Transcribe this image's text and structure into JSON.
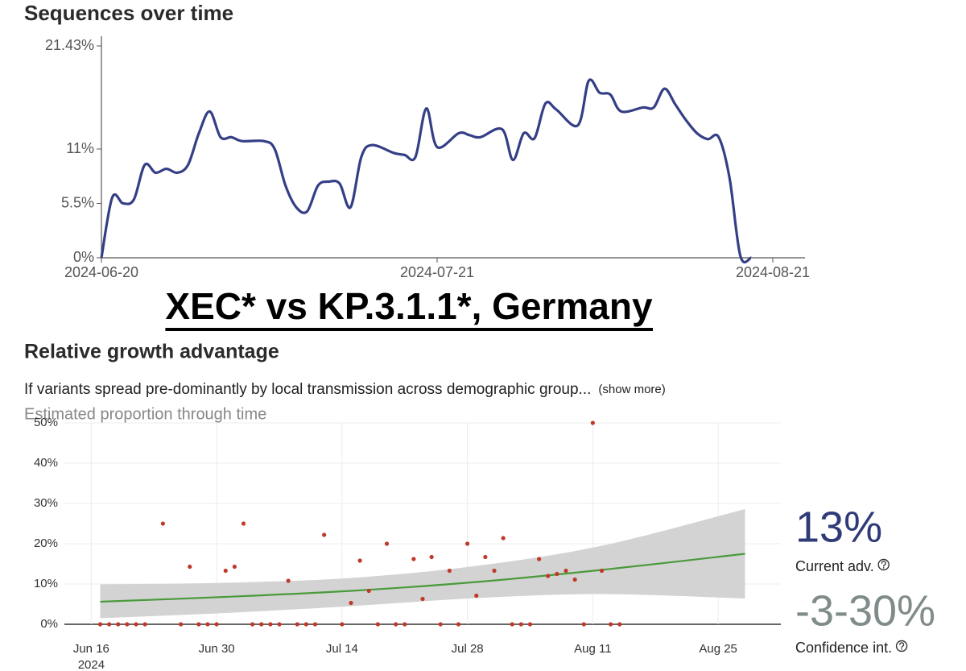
{
  "heading": "XEC* vs KP.3.1.1*, Germany",
  "section_title": "Relative growth advantage",
  "description": "If variants spread pre-dominantly by local transmission across demographic group...",
  "show_more": "(show more)",
  "stats": [
    {
      "value": "13%",
      "label": "Current adv."
    },
    {
      "value": "-3-30%",
      "label": "Confidence int."
    }
  ],
  "chart_data": [
    {
      "type": "line",
      "title": "Sequences over time",
      "color": "#353f85",
      "x": [
        "2024-06-20",
        "2024-06-21",
        "2024-06-22",
        "2024-06-23",
        "2024-06-24",
        "2024-06-25",
        "2024-06-26",
        "2024-06-27",
        "2024-06-28",
        "2024-06-29",
        "2024-06-30",
        "2024-07-01",
        "2024-07-02",
        "2024-07-03",
        "2024-07-05",
        "2024-07-06",
        "2024-07-07",
        "2024-07-08",
        "2024-07-09",
        "2024-07-10",
        "2024-07-11",
        "2024-07-12",
        "2024-07-13",
        "2024-07-14",
        "2024-07-15",
        "2024-07-17",
        "2024-07-18",
        "2024-07-19",
        "2024-07-20",
        "2024-07-21",
        "2024-07-23",
        "2024-07-24",
        "2024-07-25",
        "2024-07-27",
        "2024-07-28",
        "2024-07-29",
        "2024-07-30",
        "2024-07-31",
        "2024-08-01",
        "2024-08-03",
        "2024-08-04",
        "2024-08-05",
        "2024-08-06",
        "2024-08-07",
        "2024-08-09",
        "2024-08-10",
        "2024-08-11",
        "2024-08-12",
        "2024-08-13",
        "2024-08-14",
        "2024-08-15",
        "2024-08-16",
        "2024-08-17",
        "2024-08-18",
        "2024-08-19"
      ],
      "values": [
        0,
        6.1,
        5.5,
        5.9,
        9.4,
        8.6,
        9.0,
        8.6,
        9.4,
        12.6,
        14.8,
        12.2,
        12.2,
        11.8,
        11.8,
        11.0,
        7.3,
        5.1,
        4.7,
        7.3,
        7.7,
        7.5,
        5.1,
        10.2,
        11.4,
        10.6,
        10.4,
        10.2,
        15.1,
        11.2,
        12.6,
        12.4,
        12.2,
        13.0,
        9.9,
        12.6,
        12.1,
        15.6,
        15.0,
        13.4,
        17.9,
        16.7,
        16.5,
        14.8,
        15.2,
        15.2,
        17.1,
        15.5,
        13.9,
        12.6,
        12.0,
        12.2,
        8.1,
        0.2,
        0
      ],
      "xlim": [
        "2024-06-20",
        "2024-08-21"
      ],
      "xticks": [
        "2024-06-20",
        "2024-07-21",
        "2024-08-21"
      ],
      "ylim": [
        0,
        21.43
      ],
      "yticks": [
        {
          "value": 0,
          "label": "0%"
        },
        {
          "value": 5.5,
          "label": "5.5%"
        },
        {
          "value": 11,
          "label": "11%"
        },
        {
          "value": 21.43,
          "label": "21.43%"
        }
      ]
    },
    {
      "type": "scatter",
      "title": "Estimated proportion through time",
      "color": "#c0392b",
      "x": [
        "2024-06-17",
        "2024-06-18",
        "2024-06-19",
        "2024-06-20",
        "2024-06-21",
        "2024-06-22",
        "2024-06-24",
        "2024-06-26",
        "2024-06-27",
        "2024-06-28",
        "2024-06-29",
        "2024-06-30",
        "2024-07-01",
        "2024-07-02",
        "2024-07-03",
        "2024-07-04",
        "2024-07-05",
        "2024-07-06",
        "2024-07-07",
        "2024-07-08",
        "2024-07-09",
        "2024-07-10",
        "2024-07-11",
        "2024-07-12",
        "2024-07-14",
        "2024-07-15",
        "2024-07-16",
        "2024-07-17",
        "2024-07-18",
        "2024-07-19",
        "2024-07-20",
        "2024-07-21",
        "2024-07-22",
        "2024-07-23",
        "2024-07-24",
        "2024-07-25",
        "2024-07-26",
        "2024-07-27",
        "2024-07-28",
        "2024-07-29",
        "2024-07-30",
        "2024-07-31",
        "2024-08-01",
        "2024-08-02",
        "2024-08-03",
        "2024-08-04",
        "2024-08-05",
        "2024-08-06",
        "2024-08-07",
        "2024-08-08",
        "2024-08-09",
        "2024-08-10",
        "2024-08-11",
        "2024-08-12",
        "2024-08-13",
        "2024-08-14"
      ],
      "values": [
        0,
        0,
        0,
        0,
        0,
        0,
        25,
        0,
        14.3,
        0,
        0,
        0,
        13.3,
        14.3,
        25,
        0,
        0,
        0,
        0,
        10.8,
        0,
        0,
        0,
        22.2,
        0,
        5.3,
        15.8,
        8.3,
        0,
        20,
        0,
        0,
        16.2,
        6.3,
        16.7,
        0,
        13.3,
        0,
        20,
        7.1,
        16.7,
        13.3,
        21.4,
        0,
        0,
        0,
        16.2,
        12,
        12.5,
        13.3,
        11.1,
        0,
        50,
        13.3,
        0,
        0
      ],
      "fit": {
        "color": "#4a9a3a",
        "band_color": "#d3d3d3",
        "x": [
          "2024-06-17",
          "2024-07-01",
          "2024-07-15",
          "2024-07-29",
          "2024-08-12",
          "2024-08-28"
        ],
        "values": [
          5.6,
          6.8,
          8.3,
          10.5,
          13.5,
          17.5
        ],
        "lower": [
          1.5,
          2.8,
          4.5,
          6.5,
          7.5,
          6.4
        ],
        "upper": [
          9.9,
          10.3,
          11.5,
          14.5,
          19.5,
          28.6
        ]
      },
      "xlim": [
        "2024-06-13",
        "2024-09-01"
      ],
      "xticks": [
        {
          "value": "2024-06-16",
          "label": "Jun 16"
        },
        {
          "value": "2024-06-30",
          "label": "Jun 30"
        },
        {
          "value": "2024-07-14",
          "label": "Jul 14"
        },
        {
          "value": "2024-07-28",
          "label": "Jul 28"
        },
        {
          "value": "2024-08-11",
          "label": "Aug 11"
        },
        {
          "value": "2024-08-25",
          "label": "Aug 25"
        }
      ],
      "year_label": "2024",
      "ylim": [
        0,
        50
      ],
      "yticks": [
        {
          "value": 0,
          "label": "0%"
        },
        {
          "value": 10,
          "label": "10%"
        },
        {
          "value": 20,
          "label": "20%"
        },
        {
          "value": 30,
          "label": "30%"
        },
        {
          "value": 40,
          "label": "40%"
        },
        {
          "value": 50,
          "label": "50%"
        }
      ],
      "grid": true
    }
  ]
}
